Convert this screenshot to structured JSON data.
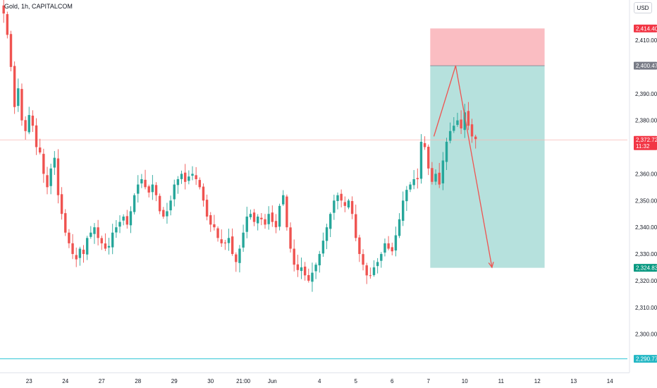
{
  "header": {
    "symbol": "Gold, 1h, CAPITALCOM"
  },
  "currency": "USD",
  "colors": {
    "up": "#26a69a",
    "down": "#ef5350",
    "stop_zone": "#f9b6bb",
    "target_zone": "#b2dfdb",
    "current_line": "#f7b7b3",
    "support_line": "#2ec6d4",
    "arrow": "#ef5350",
    "stop_tag": "#f23645",
    "entry_tag": "#787b86",
    "current_tag": "#f23645",
    "target_tag": "#089981",
    "support_tag": "#22b7c4"
  },
  "chart_data": {
    "type": "candlestick",
    "symbol": "Gold",
    "interval": "1h",
    "source": "CAPITALCOM",
    "y_range": [
      2285,
      2422
    ],
    "y_ticks": [
      "2,410.00",
      "2,400.00",
      "2,390.00",
      "2,380.00",
      "2,360.00",
      "2,350.00",
      "2,340.00",
      "2,330.00",
      "2,320.00",
      "2,310.00",
      "2,300.00"
    ],
    "y_tick_values": [
      2410,
      2400,
      2390,
      2380,
      2360,
      2350,
      2340,
      2330,
      2320,
      2310,
      2300
    ],
    "x_ticks": [
      {
        "label": "23",
        "bar": 7
      },
      {
        "label": "24",
        "bar": 17
      },
      {
        "label": "27",
        "bar": 27
      },
      {
        "label": "28",
        "bar": 37
      },
      {
        "label": "29",
        "bar": 47
      },
      {
        "label": "30",
        "bar": 57
      },
      {
        "label": "21:00",
        "bar": 66
      },
      {
        "label": "Jun",
        "bar": 74
      },
      {
        "label": "4",
        "bar": 87
      },
      {
        "label": "5",
        "bar": 97
      },
      {
        "label": "6",
        "bar": 107
      },
      {
        "label": "7",
        "bar": 117
      },
      {
        "label": "10",
        "bar": 127
      },
      {
        "label": "11",
        "bar": 137
      },
      {
        "label": "12",
        "bar": 147
      },
      {
        "label": "13",
        "bar": 157
      },
      {
        "label": "14",
        "bar": 167
      }
    ],
    "closes": [
      2420,
      2412,
      2400,
      2385,
      2392,
      2380,
      2376,
      2382,
      2378,
      2370,
      2368,
      2360,
      2355,
      2362,
      2366,
      2352,
      2345,
      2338,
      2334,
      2330,
      2328,
      2332,
      2330,
      2336,
      2338,
      2340,
      2336,
      2334,
      2332,
      2333,
      2338,
      2340,
      2342,
      2344,
      2341,
      2346,
      2352,
      2356,
      2358,
      2355,
      2353,
      2356,
      2352,
      2346,
      2344,
      2346,
      2350,
      2356,
      2358,
      2360,
      2357,
      2359,
      2360,
      2358,
      2355,
      2350,
      2344,
      2341,
      2340,
      2336,
      2334,
      2334,
      2336,
      2330,
      2327,
      2332,
      2338,
      2344,
      2345,
      2342,
      2344,
      2343,
      2341,
      2345,
      2342,
      2340,
      2348,
      2352,
      2340,
      2332,
      2326,
      2324,
      2325,
      2322,
      2320,
      2323,
      2326,
      2330,
      2335,
      2340,
      2345,
      2350,
      2352,
      2350,
      2348,
      2350,
      2345,
      2336,
      2330,
      2326,
      2322,
      2322,
      2325,
      2327,
      2330,
      2334,
      2332,
      2331,
      2337,
      2343,
      2350,
      2354,
      2356,
      2358,
      2358,
      2372,
      2370,
      2362,
      2357,
      2360,
      2356,
      2365,
      2372,
      2376,
      2378,
      2380,
      2377,
      2383,
      2378,
      2374,
      2373
    ],
    "current_price": 2372.72,
    "position": {
      "type": "short",
      "stop_loss": 2414.4,
      "entry": 2400.47,
      "target": 2324.83,
      "start_bar": 117.5,
      "end_bar": 149
    },
    "projection": [
      {
        "bar": 118.5,
        "price": 2374
      },
      {
        "bar": 124.5,
        "price": 2400.47
      },
      {
        "bar": 134.5,
        "price": 2325
      }
    ],
    "support_level": 2290.77
  },
  "price_tags": {
    "stop": "2,414.40",
    "entry": "2,400.47",
    "current": "2,372.72",
    "countdown": "11:32",
    "target": "2,324.83",
    "support": "2,290.77"
  }
}
